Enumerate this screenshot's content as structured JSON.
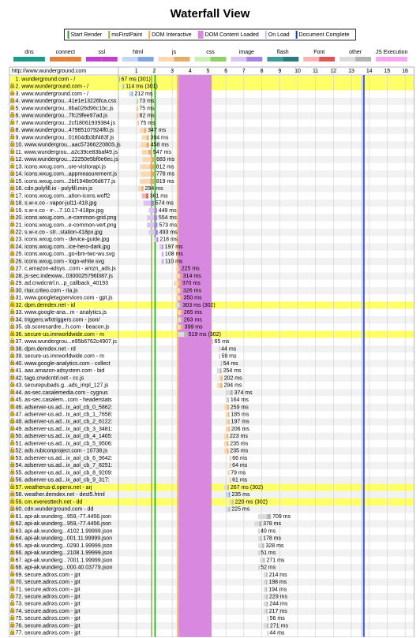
{
  "title": "Waterfall View",
  "markers": [
    {
      "name": "Start Render",
      "color": "#28a428",
      "value": 2.05
    },
    {
      "name": "msFirstPaint",
      "color": "#8fbc3b",
      "value": 1.85
    },
    {
      "name": "DOM Interactive",
      "color": "#e7b84a",
      "value": 3.3
    },
    {
      "name": "DOM Content Loaded",
      "color": "#d888df",
      "range": [
        3.35,
        5.2
      ]
    },
    {
      "name": "On Load",
      "color": "#b8c8f0",
      "value": 13.6
    },
    {
      "name": "Document Complete",
      "color": "#2030d8",
      "value": 13.7
    }
  ],
  "legend": [
    {
      "name": "dns",
      "colors": [
        "#1c9b8c",
        "#1c9b8c"
      ]
    },
    {
      "name": "connect",
      "colors": [
        "#e4813b",
        "#e4813b"
      ]
    },
    {
      "name": "ssl",
      "colors": [
        "#c141cd",
        "#c141cd"
      ]
    },
    {
      "name": "html",
      "colors": [
        "#c5d6f3",
        "#82a5de"
      ]
    },
    {
      "name": "js",
      "colors": [
        "#fbd8b0",
        "#e6ad68"
      ]
    },
    {
      "name": "css",
      "colors": [
        "#c9efb2",
        "#92cf6a"
      ]
    },
    {
      "name": "image",
      "colors": [
        "#d9c6f0",
        "#a883df"
      ]
    },
    {
      "name": "flash",
      "colors": [
        "#3c9c9e",
        "#2b7a7c"
      ]
    },
    {
      "name": "Font",
      "colors": [
        "#f7b4b4",
        "#e05555"
      ]
    },
    {
      "name": "other",
      "colors": [
        "#dcdcdc",
        "#b4b4b4"
      ]
    },
    {
      "name": "JS Execution",
      "colors": [
        "#f7a6ef",
        "#f7a6ef"
      ]
    }
  ],
  "axis": {
    "xlim": [
      0,
      16.5
    ],
    "xticks": [
      1,
      2,
      3,
      4,
      5,
      6,
      7,
      8,
      9,
      10,
      11,
      12,
      13,
      14,
      15,
      16
    ]
  },
  "page_url": "http://www.wunderground.com",
  "requests": [
    {
      "label": "1. wunderground.com - /",
      "time": "67 ms (301)",
      "ms": 67,
      "start": 0.0,
      "kind": "html",
      "secure": false,
      "highlight": true
    },
    {
      "label": "2. www.wunderground.com - /",
      "time": "114 ms (301)",
      "ms": 114,
      "start": 0.2,
      "kind": "html",
      "secure": true,
      "highlight": true
    },
    {
      "label": "3. www.wunderground.com - /",
      "time": "212 ms",
      "ms": 212,
      "start": 0.6,
      "kind": "html",
      "secure": true,
      "highlight": false
    },
    {
      "label": "4. www.wundergrou...41e1e13226fca.css",
      "time": "73 ms",
      "ms": 73,
      "start": 1.0,
      "kind": "css",
      "secure": true,
      "highlight": false
    },
    {
      "label": "5. www.wundergrou...8ba026d96c1bc.js",
      "time": "75 ms",
      "ms": 75,
      "start": 1.0,
      "kind": "js",
      "secure": true,
      "highlight": false
    },
    {
      "label": "6. www.wundergrou...7fc29fee97ad.js",
      "time": "82 ms",
      "ms": 82,
      "start": 1.0,
      "kind": "js",
      "secure": true,
      "highlight": false
    },
    {
      "label": "7. www.wundergrou...2cf18061939384.js",
      "time": "75 ms",
      "ms": 75,
      "start": 1.05,
      "kind": "js",
      "secure": true,
      "highlight": false
    },
    {
      "label": "8. www.wundergrou...47985107924lf0.js",
      "time": "347 ms",
      "ms": 347,
      "start": 1.2,
      "kind": "js",
      "secure": true,
      "highlight": false
    },
    {
      "label": "9. www.wundergrou...01604db3bf483f.js",
      "time": "394 ms",
      "ms": 394,
      "start": 1.3,
      "kind": "js",
      "secure": true,
      "highlight": false
    },
    {
      "label": "10. www.wundergrou...aac5736622080S.js",
      "time": "458 ms",
      "ms": 458,
      "start": 1.25,
      "kind": "js",
      "secure": true,
      "highlight": false
    },
    {
      "label": "11. www.wundergrou...a2c39ce83baf49.js",
      "time": "547 ms",
      "ms": 547,
      "start": 1.3,
      "kind": "js",
      "secure": true,
      "highlight": false
    },
    {
      "label": "12. www.wundergrou...22250e5bf0e6ec.js",
      "time": "683 ms",
      "ms": 683,
      "start": 1.35,
      "kind": "js",
      "secure": true,
      "highlight": false
    },
    {
      "label": "13. icons.wxug.com...ure-visitorapi.js",
      "time": "812 ms",
      "ms": 812,
      "start": 1.2,
      "kind": "js",
      "secure": true,
      "highlight": false
    },
    {
      "label": "14. icons.wxug.com...appmeasurement.js",
      "time": "778 ms",
      "ms": 778,
      "start": 1.25,
      "kind": "js",
      "secure": true,
      "highlight": false
    },
    {
      "label": "15. icons.wxug.com...2bf1948e06d677.js",
      "time": "819 ms",
      "ms": 819,
      "start": 1.2,
      "kind": "js",
      "secure": true,
      "highlight": false
    },
    {
      "label": "16. cdn.polyfill.io - polyfill.min.js",
      "time": "294 ms",
      "ms": 294,
      "start": 1.1,
      "kind": "js",
      "secure": true,
      "highlight": false
    },
    {
      "label": "17. icons.wxug.com...ation-icons.woff2",
      "time": "361 ms",
      "ms": 361,
      "start": 1.3,
      "kind": "Font",
      "secure": true,
      "highlight": false
    },
    {
      "label": "18. s.w-x.co - vapor-jul11-418.jpg",
      "time": "574 ms",
      "ms": 574,
      "start": 1.4,
      "kind": "image",
      "secure": true,
      "highlight": false
    },
    {
      "label": "19. s.w-x.co - ir-...7.10.17-418px.jpg",
      "time": "449 ms",
      "ms": 449,
      "start": 1.7,
      "kind": "image",
      "secure": true,
      "highlight": false
    },
    {
      "label": "20. icons.wxug.com...e-common-grid.png",
      "time": "554 ms",
      "ms": 554,
      "start": 1.6,
      "kind": "image",
      "secure": true,
      "highlight": false
    },
    {
      "label": "21. icons.wxug.com...e-common-vert.png",
      "time": "573 ms",
      "ms": 573,
      "start": 1.6,
      "kind": "image",
      "secure": true,
      "highlight": false
    },
    {
      "label": "22. s.w-x.co - str...station-418px.jpg",
      "time": "493 ms",
      "ms": 493,
      "start": 1.7,
      "kind": "image",
      "secure": true,
      "highlight": false
    },
    {
      "label": "23. icons.wxug.com - device-guide.jpg",
      "time": "218 ms",
      "ms": 218,
      "start": 2.0,
      "kind": "image",
      "secure": true,
      "highlight": false
    },
    {
      "label": "24. icons.wxug.com...ice-hero-dark.jpg",
      "time": "197 ms",
      "ms": 197,
      "start": 2.3,
      "kind": "image",
      "secure": true,
      "highlight": false
    },
    {
      "label": "25. icons.wxug.com...go-ibm-twc-wu.svg",
      "time": "108 ms",
      "ms": 108,
      "start": 2.4,
      "kind": "image",
      "secure": true,
      "highlight": false
    },
    {
      "label": "26. icons.wxug.com - logo-white.svg",
      "time": "110 ms",
      "ms": 110,
      "start": 2.4,
      "kind": "image",
      "secure": true,
      "highlight": false
    },
    {
      "label": "27. c.amazon-adsys...com - amzn_ads.js",
      "time": "225 ms",
      "ms": 225,
      "start": 3.2,
      "kind": "js",
      "secure": true,
      "highlight": false
    },
    {
      "label": "28. js-sec.indexww...0300025796l387.js",
      "time": "314 ms",
      "ms": 314,
      "start": 3.2,
      "kind": "js",
      "secure": true,
      "highlight": false
    },
    {
      "label": "29. ad.crwdcntrl.n...p_callback_40193",
      "time": "370 ms",
      "ms": 370,
      "start": 3.1,
      "kind": "js",
      "secure": true,
      "highlight": false
    },
    {
      "label": "30. rtax.criteo.com - rta.js",
      "time": "326 ms",
      "ms": 326,
      "start": 3.2,
      "kind": "js",
      "secure": true,
      "highlight": false
    },
    {
      "label": "31. www.googletagservices.com - gpt.js",
      "time": "350 ms",
      "ms": 350,
      "start": 3.2,
      "kind": "js",
      "secure": true,
      "highlight": false
    },
    {
      "label": "32. dpm.demdex.net - id",
      "time": "303 ms (302)",
      "ms": 303,
      "start": 3.2,
      "kind": "other",
      "secure": true,
      "highlight": true
    },
    {
      "label": "33. www.google-ana...m - analytics.js",
      "time": "265 ms",
      "ms": 265,
      "start": 3.3,
      "kind": "js",
      "secure": true,
      "highlight": false
    },
    {
      "label": "34. triggers.wfxtriggers.com - json/",
      "time": "263 ms",
      "ms": 263,
      "start": 3.3,
      "kind": "other",
      "secure": true,
      "highlight": false
    },
    {
      "label": "35. sb.scorecardre...h.com - beacon.js",
      "time": "399 ms",
      "ms": 399,
      "start": 3.2,
      "kind": "js",
      "secure": true,
      "highlight": false
    },
    {
      "label": "36. secure-us.imrworldwide.com - m",
      "time": "519 ms (302)",
      "ms": 519,
      "start": 3.3,
      "kind": "other",
      "secure": true,
      "highlight": true
    },
    {
      "label": "37. www.wundergrou...e95b6762c4907.js",
      "time": "65 ms",
      "ms": 65,
      "start": 5.2,
      "kind": "js",
      "secure": true,
      "highlight": false
    },
    {
      "label": "38. dpm.demdex.net - rd",
      "time": "44 ms",
      "ms": 44,
      "start": 5.6,
      "kind": "other",
      "secure": true,
      "highlight": false
    },
    {
      "label": "39. secure-us.imrworldwide.com - m",
      "time": "59 ms",
      "ms": 59,
      "start": 5.6,
      "kind": "other",
      "secure": true,
      "highlight": false
    },
    {
      "label": "40. www.google-analytics.com - collect",
      "time": "54 ms",
      "ms": 54,
      "start": 5.7,
      "kind": "other",
      "secure": true,
      "highlight": false
    },
    {
      "label": "41. aax.amazon-adsystem.com - bid",
      "time": "254 ms",
      "ms": 254,
      "start": 5.5,
      "kind": "other",
      "secure": true,
      "highlight": false
    },
    {
      "label": "42. tags.crwdcntrl.net - cc.js",
      "time": "202 ms",
      "ms": 202,
      "start": 5.6,
      "kind": "js",
      "secure": true,
      "highlight": false
    },
    {
      "label": "43. securepubads.g...ads_impl_127.js",
      "time": "294 ms",
      "ms": 294,
      "start": 5.5,
      "kind": "js",
      "secure": true,
      "highlight": false
    },
    {
      "label": "44. as-sec.casalemedia.com - cygnus",
      "time": "374 ms",
      "ms": 374,
      "start": 6.0,
      "kind": "other",
      "secure": true,
      "highlight": false
    },
    {
      "label": "45. as-sec.casalem...com - headerstats",
      "time": "164 ms",
      "ms": 164,
      "start": 6.0,
      "kind": "other",
      "secure": true,
      "highlight": false
    },
    {
      "label": "46. adserver-us.ad...ix_aol_cb_0_5862:",
      "time": "259 ms",
      "ms": 259,
      "start": 5.9,
      "kind": "js",
      "secure": true,
      "highlight": false
    },
    {
      "label": "47. adserver-us.ad...ix_aol_cb_1_7658:",
      "time": "185 ms",
      "ms": 185,
      "start": 6.0,
      "kind": "js",
      "secure": true,
      "highlight": false
    },
    {
      "label": "48. adserver-us.ad...ix_aol_cb_2_6122:",
      "time": "197 ms",
      "ms": 197,
      "start": 6.0,
      "kind": "js",
      "secure": true,
      "highlight": false
    },
    {
      "label": "49. adserver-us.ad...ix_aol_cb_3_3481:",
      "time": "206 ms",
      "ms": 206,
      "start": 6.0,
      "kind": "js",
      "secure": true,
      "highlight": false
    },
    {
      "label": "50. adserver-us.ad...ix_aol_cb_4_1465:",
      "time": "223 ms",
      "ms": 223,
      "start": 5.9,
      "kind": "js",
      "secure": true,
      "highlight": false
    },
    {
      "label": "51. adserver-us.ad...ix_aol_cb_5_9506:",
      "time": "235 ms",
      "ms": 235,
      "start": 5.9,
      "kind": "js",
      "secure": true,
      "highlight": false
    },
    {
      "label": "52. ads.rubiconproject.com - 10738.js",
      "time": "235 ms",
      "ms": 235,
      "start": 5.9,
      "kind": "js",
      "secure": true,
      "highlight": false
    },
    {
      "label": "53. adserver-us.ad...ix_aol_cb_6_9642:",
      "time": "66 ms",
      "ms": 66,
      "start": 6.2,
      "kind": "js",
      "secure": true,
      "highlight": false
    },
    {
      "label": "54. adserver-us.ad...ix_aol_cb_7_8251:",
      "time": "64 ms",
      "ms": 64,
      "start": 6.2,
      "kind": "js",
      "secure": true,
      "highlight": false
    },
    {
      "label": "55. adserver-us.ad...ix_aol_cb_8_9209:",
      "time": "79 ms",
      "ms": 79,
      "start": 6.1,
      "kind": "js",
      "secure": true,
      "highlight": false
    },
    {
      "label": "56. adserver-us.ad...ix_aol_cb_9_317:",
      "time": "61 ms",
      "ms": 61,
      "start": 6.2,
      "kind": "js",
      "secure": true,
      "highlight": false
    },
    {
      "label": "57. weatherus-d.openx.net - arj",
      "time": "267 ms (302)",
      "ms": 267,
      "start": 5.9,
      "kind": "other",
      "secure": true,
      "highlight": true
    },
    {
      "label": "58. weather.demdex.net - dest5.html",
      "time": "235 ms",
      "ms": 235,
      "start": 6.0,
      "kind": "html",
      "secure": true,
      "highlight": false
    },
    {
      "label": "59. cm.everesttech.net - dd",
      "time": "220 ms (302)",
      "ms": 220,
      "start": 6.2,
      "kind": "other",
      "secure": true,
      "highlight": true
    },
    {
      "label": "60. cdn.wunderground.com - dd",
      "time": "225 ms",
      "ms": 225,
      "start": 6.0,
      "kind": "other",
      "secure": true,
      "highlight": false
    },
    {
      "label": "61. api-ak.wunderg...959,-77.4456.json",
      "time": "709 ms",
      "ms": 709,
      "start": 7.8,
      "kind": "other",
      "secure": true,
      "highlight": false
    },
    {
      "label": "62. api-ak.wunderg...959,-77.4456.json",
      "time": "378 ms",
      "ms": 378,
      "start": 7.6,
      "kind": "other",
      "secure": true,
      "highlight": false
    },
    {
      "label": "63. api-ak.wunderg...4102.1.99999.json",
      "time": "40 ms",
      "ms": 40,
      "start": 7.8,
      "kind": "other",
      "secure": true,
      "highlight": false
    },
    {
      "label": "64. api-ak.wunderg...001.11.99999.json",
      "time": "178 ms",
      "ms": 178,
      "start": 7.8,
      "kind": "other",
      "secure": true,
      "highlight": false
    },
    {
      "label": "65. api-ak.wunderg...0290.1.99999.json",
      "time": "328 ms",
      "ms": 328,
      "start": 7.8,
      "kind": "other",
      "secure": true,
      "highlight": false
    },
    {
      "label": "66. api-ak.wunderg...2108.1.99999.json",
      "time": "51 ms",
      "ms": 51,
      "start": 7.8,
      "kind": "other",
      "secure": true,
      "highlight": false
    },
    {
      "label": "67. api-ak.wunderg...7001.1.99999.json",
      "time": "271 ms",
      "ms": 271,
      "start": 7.9,
      "kind": "other",
      "secure": true,
      "highlight": false
    },
    {
      "label": "68. api-ak.wunderg...000.40.03779.json",
      "time": "52 ms",
      "ms": 52,
      "start": 7.8,
      "kind": "other",
      "secure": true,
      "highlight": false
    },
    {
      "label": "69. secure.adnxs.com - jpt",
      "time": "214 ms",
      "ms": 214,
      "start": 8.1,
      "kind": "other",
      "secure": true,
      "highlight": false
    },
    {
      "label": "70. secure.adnxs.com - jpt",
      "time": "198 ms",
      "ms": 198,
      "start": 8.1,
      "kind": "other",
      "secure": true,
      "highlight": false
    },
    {
      "label": "71. secure.adnxs.com - jpt",
      "time": "194 ms",
      "ms": 194,
      "start": 8.1,
      "kind": "other",
      "secure": true,
      "highlight": false
    },
    {
      "label": "72. secure.adnxs.com - jpt",
      "time": "229 ms",
      "ms": 229,
      "start": 8.1,
      "kind": "other",
      "secure": true,
      "highlight": false
    },
    {
      "label": "73. secure.adnxs.com - jpt",
      "time": "244 ms",
      "ms": 244,
      "start": 8.1,
      "kind": "other",
      "secure": true,
      "highlight": false
    },
    {
      "label": "74. secure.adnxs.com - jpt",
      "time": "217 ms",
      "ms": 217,
      "start": 8.1,
      "kind": "other",
      "secure": true,
      "highlight": false
    },
    {
      "label": "75. secure.adnxs.com - jpt",
      "time": "56 ms",
      "ms": 56,
      "start": 8.3,
      "kind": "other",
      "secure": true,
      "highlight": false
    },
    {
      "label": "76. secure.adnxs.com - jpt",
      "time": "271 ms",
      "ms": 271,
      "start": 8.1,
      "kind": "other",
      "secure": true,
      "highlight": false
    },
    {
      "label": "77. secure.adnxs.com - jpt",
      "time": "44 ms",
      "ms": 44,
      "start": 8.3,
      "kind": "other",
      "secure": true,
      "highlight": false
    }
  ]
}
